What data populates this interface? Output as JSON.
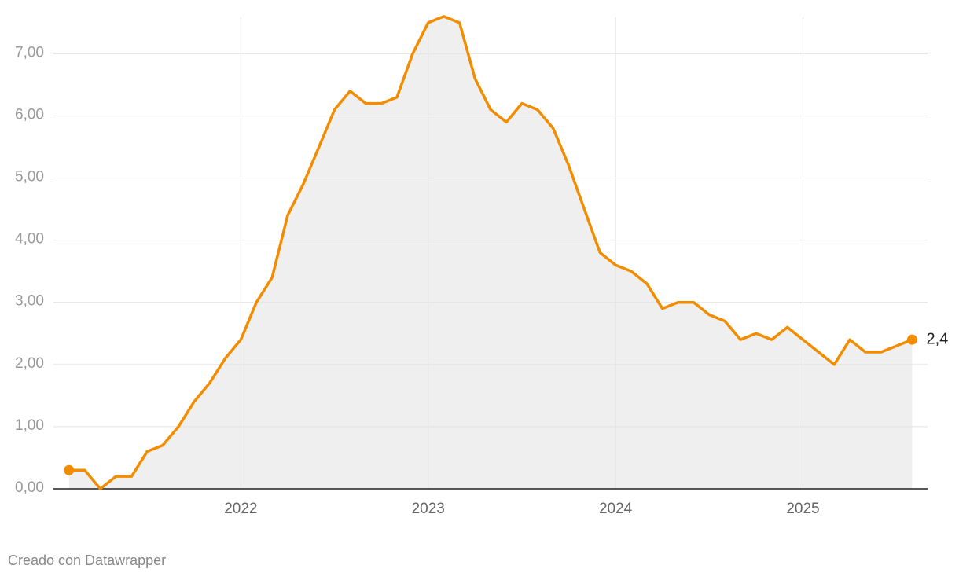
{
  "chart_data": {
    "type": "area-line",
    "x": [
      2021.083,
      2021.167,
      2021.25,
      2021.333,
      2021.417,
      2021.5,
      2021.583,
      2021.667,
      2021.75,
      2021.833,
      2021.917,
      2022,
      2022.083,
      2022.167,
      2022.25,
      2022.333,
      2022.417,
      2022.5,
      2022.583,
      2022.667,
      2022.75,
      2022.833,
      2022.917,
      2023,
      2023.083,
      2023.167,
      2023.25,
      2023.333,
      2023.417,
      2023.5,
      2023.583,
      2023.667,
      2023.75,
      2023.833,
      2023.917,
      2024,
      2024.083,
      2024.167,
      2024.25,
      2024.333,
      2024.417,
      2024.5,
      2024.583,
      2024.667,
      2024.75,
      2024.833,
      2024.917,
      2025,
      2025.083,
      2025.167,
      2025.25,
      2025.333,
      2025.417,
      2025.5,
      2025.583
    ],
    "series": [
      {
        "color": "#f28c00",
        "fill": "#efefef",
        "values": [
          0.3,
          0.3,
          0.0,
          0.2,
          0.2,
          0.6,
          0.7,
          1.0,
          1.4,
          1.7,
          2.1,
          2.4,
          3.0,
          3.4,
          4.4,
          4.9,
          5.5,
          6.1,
          6.4,
          6.2,
          6.2,
          6.3,
          7.0,
          7.5,
          7.6,
          7.5,
          6.6,
          6.1,
          5.9,
          6.2,
          6.1,
          5.8,
          5.2,
          4.5,
          3.8,
          3.6,
          3.5,
          3.3,
          2.9,
          3.0,
          3.0,
          2.8,
          2.7,
          2.4,
          2.5,
          2.4,
          2.6,
          2.4,
          2.2,
          2.0,
          2.4,
          2.2,
          2.2,
          2.3,
          2.4
        ],
        "last_value_label": "2,4"
      }
    ],
    "xlim": [
      2021,
      2025.665
    ],
    "xticks": [
      2022,
      2023,
      2024,
      2025
    ],
    "ylim": [
      0,
      7.7
    ],
    "yticks": [
      {
        "value": 0,
        "label": "0,00"
      },
      {
        "value": 1,
        "label": "1,00"
      },
      {
        "value": 2,
        "label": "2,00"
      },
      {
        "value": 3,
        "label": "3,00"
      },
      {
        "value": 4,
        "label": "4,00"
      },
      {
        "value": 5,
        "label": "5,00"
      },
      {
        "value": 6,
        "label": "6,00"
      },
      {
        "value": 7,
        "label": "7,00"
      }
    ],
    "grid": true,
    "source": "Creado con Datawrapper"
  }
}
